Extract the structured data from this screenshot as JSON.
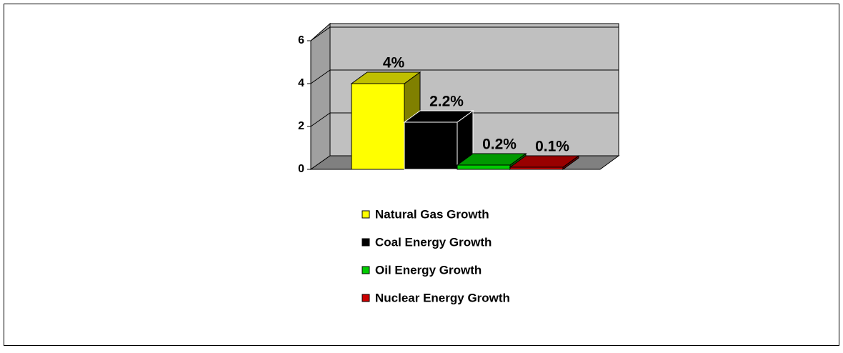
{
  "chart_data": {
    "type": "bar3d",
    "series": [
      {
        "name": "Natural Gas Growth",
        "color": "#ffff00",
        "values": [
          4
        ],
        "value_labels": [
          "4%"
        ]
      },
      {
        "name": "Coal Energy Growth",
        "color": "#000000",
        "values": [
          2.2
        ],
        "value_labels": [
          "2.2%"
        ]
      },
      {
        "name": "Oil Energy Growth",
        "color": "#00cc00",
        "values": [
          0.2
        ],
        "value_labels": [
          "0.2%"
        ]
      },
      {
        "name": "Nuclear Energy Growth",
        "color": "#cc0000",
        "values": [
          0.1
        ],
        "value_labels": [
          "0.1%"
        ]
      }
    ],
    "ylim": [
      0,
      6
    ],
    "yticks": [
      0,
      2,
      4,
      6
    ],
    "grid": true,
    "legend": "bottom"
  }
}
